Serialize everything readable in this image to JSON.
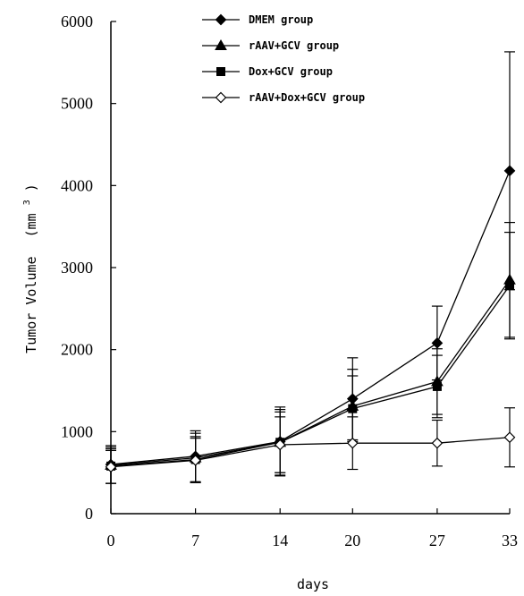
{
  "chart_data": {
    "type": "line",
    "title": "",
    "xlabel": "days",
    "ylabel": "Tumor Volume (mm³)",
    "ylabel_main": "Tumor Volume",
    "ylabel_unit_prefix": "(mm",
    "ylabel_unit_sup": "3",
    "ylabel_unit_suffix": ")",
    "x": [
      0,
      7,
      14,
      20,
      27,
      33
    ],
    "xticks": [
      "0",
      "7",
      "14",
      "20",
      "27",
      "33"
    ],
    "ylim": [
      0,
      6000
    ],
    "yticks": [
      "0",
      "1000",
      "2000",
      "3000",
      "4000",
      "5000",
      "6000"
    ],
    "grid": false,
    "legend_position": "top-center",
    "series": [
      {
        "name": "DMEM group",
        "marker": "filled-diamond",
        "values": [
          600,
          700,
          880,
          1400,
          2080,
          4180
        ],
        "errors": [
          230,
          310,
          420,
          500,
          450,
          1450
        ]
      },
      {
        "name": "rAAV+GCV group",
        "marker": "filled-triangle",
        "values": [
          590,
          680,
          870,
          1310,
          1610,
          2850
        ],
        "errors": [
          220,
          300,
          400,
          450,
          400,
          700
        ]
      },
      {
        "name": "Dox+GCV group",
        "marker": "filled-square",
        "values": [
          580,
          660,
          870,
          1280,
          1550,
          2780
        ],
        "errors": [
          210,
          280,
          370,
          400,
          380,
          650
        ]
      },
      {
        "name": "rAAV+Dox+GCV group",
        "marker": "open-diamond",
        "values": [
          570,
          650,
          840,
          860,
          860,
          930
        ],
        "errors": [
          200,
          270,
          340,
          320,
          280,
          360
        ]
      }
    ]
  }
}
